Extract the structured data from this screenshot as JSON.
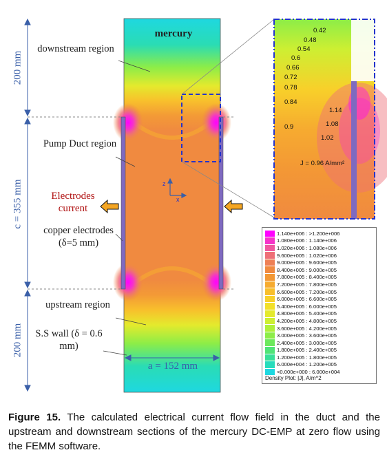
{
  "main_plot": {
    "title": "mercury",
    "region_downstream": "downstream region",
    "region_duct": "Pump Duct region",
    "region_upstream": "upstream region",
    "electrodes_current": "Electrodes current",
    "copper_electrodes": "copper electrodes (δ=5 mm)",
    "ss_wall": "S.S wall (δ = 0.6 mm)",
    "width_label": "a = 152 mm",
    "axis_z": "z",
    "axis_x": "x"
  },
  "dimensions": {
    "top": "200 mm",
    "middle": "c = 355 mm",
    "bottom": "200 mm"
  },
  "zoom": {
    "contour_labels": [
      "0.42",
      "0.48",
      "0.54",
      "0.6",
      "0.66",
      "0.72",
      "0.78",
      "0.84",
      "0.9",
      "1.14",
      "1.08",
      "1.02"
    ],
    "density_label": "J = 0.96 A/mm²"
  },
  "legend": {
    "title": "Density Plot: |J|, A/m^2",
    "items": [
      {
        "range": "1.140e+006 : >1.200e+006",
        "color": "#ff00ff"
      },
      {
        "range": "1.080e+006 : 1.140e+006",
        "color": "#f533c9"
      },
      {
        "range": "1.020e+006 : 1.080e+006",
        "color": "#f0579f"
      },
      {
        "range": "9.600e+005 : 1.020e+006",
        "color": "#ee6f77"
      },
      {
        "range": "9.000e+005 : 9.600e+005",
        "color": "#ee8055"
      },
      {
        "range": "8.400e+005 : 9.000e+005",
        "color": "#f08a40"
      },
      {
        "range": "7.800e+005 : 8.400e+005",
        "color": "#f39835"
      },
      {
        "range": "7.200e+005 : 7.800e+005",
        "color": "#f6ab30"
      },
      {
        "range": "6.600e+005 : 7.200e+005",
        "color": "#f8bf2c"
      },
      {
        "range": "6.000e+005 : 6.600e+005",
        "color": "#f8d02a"
      },
      {
        "range": "5.400e+005 : 6.000e+005",
        "color": "#f2e02a"
      },
      {
        "range": "4.800e+005 : 5.400e+005",
        "color": "#e4ea2d"
      },
      {
        "range": "4.200e+005 : 4.800e+005",
        "color": "#cdef32"
      },
      {
        "range": "3.600e+005 : 4.200e+005",
        "color": "#aef03a"
      },
      {
        "range": "3.000e+005 : 3.600e+005",
        "color": "#8ced48"
      },
      {
        "range": "2.400e+005 : 3.000e+005",
        "color": "#6ce95c"
      },
      {
        "range": "1.800e+005 : 2.400e+005",
        "color": "#4fe477"
      },
      {
        "range": "1.200e+005 : 1.800e+005",
        "color": "#38e097"
      },
      {
        "range": "6.000e+004 : 1.200e+005",
        "color": "#27dcbb"
      },
      {
        "range": "<0.000e+000 : 6.000e+004",
        "color": "#1ed8e0"
      }
    ]
  },
  "caption": {
    "label": "Figure 15.",
    "text": " The calculated electrical current flow field in the duct and the upstream and downstream sections of the mercury DC-EMP at zero flow using the FEMM software."
  }
}
